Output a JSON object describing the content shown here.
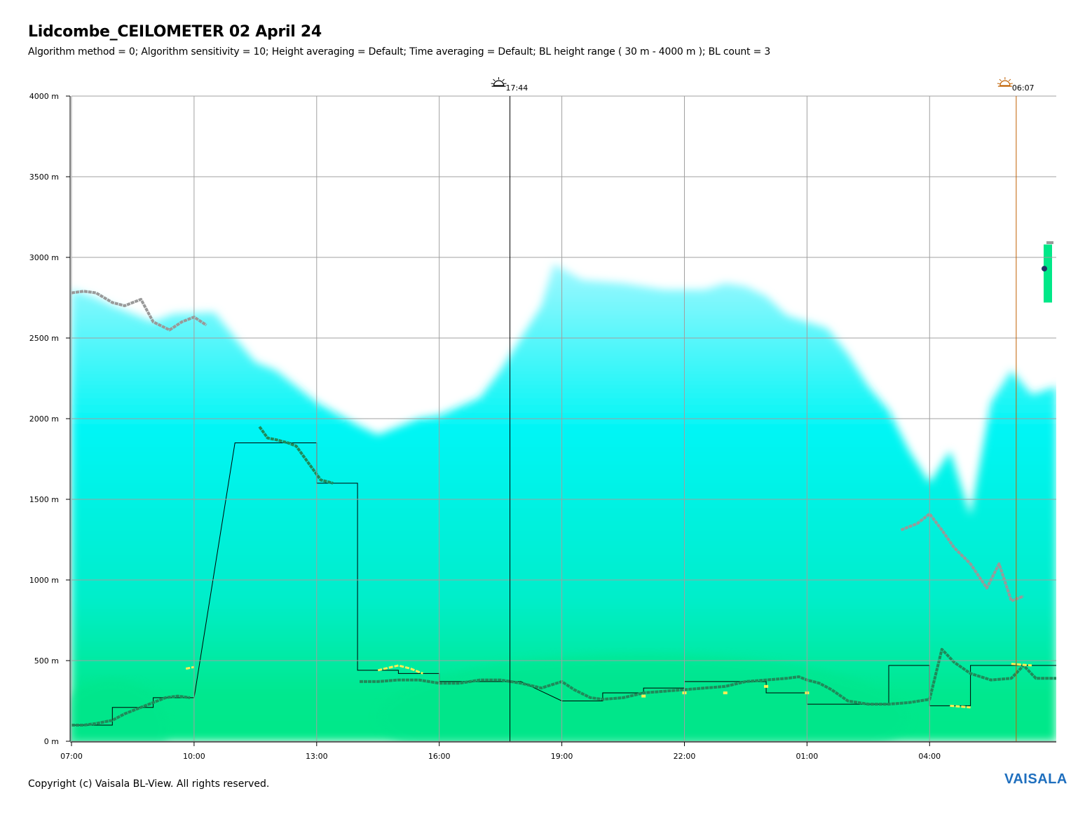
{
  "header": {
    "title": "Lidcombe_CEILOMETER 02 April 24",
    "subtitle": "Algorithm method = 0; Algorithm sensitivity = 10; Height averaging = Default; Time averaging = Default; BL height range ( 30 m - 4000 m ); BL count = 3"
  },
  "footer": {
    "copyright": "Copyright (c) Vaisala BL-View. All rights reserved.",
    "brand": "VAISALA"
  },
  "colors": {
    "grid": "#a0a0a0",
    "cyan": "#00f5f5",
    "green": "#00e58a",
    "bl1": "#1f8a5a",
    "bl2": "#999999",
    "bl3": "#ffee55",
    "sunset_line": "#000000",
    "sunrise_line": "#c06000"
  },
  "chart_data": {
    "type": "heatmap",
    "x_unit": "hours since 07:00",
    "x_ticks": [
      "07:00",
      "10:00",
      "13:00",
      "16:00",
      "19:00",
      "22:00",
      "01:00",
      "04:00"
    ],
    "y_ticks": [
      "0 m",
      "500 m",
      "1000 m",
      "1500 m",
      "2000 m",
      "2500 m",
      "3000 m",
      "3500 m",
      "4000 m"
    ],
    "ylim": [
      0,
      4000
    ],
    "xlim": [
      0,
      24.1
    ],
    "events": [
      {
        "name": "sunset",
        "label": "17:44",
        "x": 10.73
      },
      {
        "name": "sunrise",
        "label": "06:07",
        "x": 23.12
      }
    ],
    "signal_top": [
      [
        0,
        2800
      ],
      [
        0.5,
        2760
      ],
      [
        1,
        2700
      ],
      [
        1.5,
        2650
      ],
      [
        2,
        2600
      ],
      [
        2.5,
        2650
      ],
      [
        3.5,
        2660
      ],
      [
        4,
        2500
      ],
      [
        4.5,
        2350
      ],
      [
        5,
        2300
      ],
      [
        5.5,
        2200
      ],
      [
        6,
        2100
      ],
      [
        6.5,
        2030
      ],
      [
        7,
        1960
      ],
      [
        7.5,
        1900
      ],
      [
        8,
        1950
      ],
      [
        8.5,
        2000
      ],
      [
        9,
        2020
      ],
      [
        10,
        2130
      ],
      [
        10.5,
        2300
      ],
      [
        11,
        2500
      ],
      [
        11.5,
        2700
      ],
      [
        11.8,
        2960
      ],
      [
        12.5,
        2860
      ],
      [
        13.5,
        2840
      ],
      [
        14.5,
        2800
      ],
      [
        15.5,
        2800
      ],
      [
        16,
        2840
      ],
      [
        16.5,
        2820
      ],
      [
        17,
        2760
      ],
      [
        17.5,
        2640
      ],
      [
        18,
        2600
      ],
      [
        18.5,
        2560
      ],
      [
        19,
        2400
      ],
      [
        19.5,
        2200
      ],
      [
        20,
        2050
      ],
      [
        20.5,
        1800
      ],
      [
        21,
        1600
      ],
      [
        21.5,
        1800
      ],
      [
        22,
        1400
      ],
      [
        22.5,
        2100
      ],
      [
        23,
        2300
      ],
      [
        23.5,
        2150
      ],
      [
        24.1,
        2200
      ]
    ],
    "bl_step": [
      [
        0,
        100
      ],
      [
        1,
        100
      ],
      [
        1,
        210
      ],
      [
        2,
        210
      ],
      [
        2,
        270
      ],
      [
        3,
        270
      ],
      [
        4,
        1850
      ],
      [
        6,
        1850
      ],
      [
        6,
        1600
      ],
      [
        7,
        1600
      ],
      [
        7,
        440
      ],
      [
        8,
        440
      ],
      [
        8,
        420
      ],
      [
        9,
        420
      ],
      [
        9,
        370
      ],
      [
        11,
        370
      ],
      [
        12,
        250
      ],
      [
        13,
        250
      ],
      [
        13,
        300
      ],
      [
        14,
        300
      ],
      [
        14,
        330
      ],
      [
        15,
        330
      ],
      [
        15,
        370
      ],
      [
        17,
        370
      ],
      [
        17,
        300
      ],
      [
        18,
        300
      ],
      [
        18,
        230
      ],
      [
        20,
        230
      ],
      [
        20,
        470
      ],
      [
        21,
        470
      ],
      [
        21,
        220
      ],
      [
        22,
        220
      ],
      [
        22,
        470
      ],
      [
        24.1,
        470
      ]
    ],
    "series": [
      {
        "style": "dark-green",
        "points": [
          [
            0,
            100
          ],
          [
            0.3,
            100
          ],
          [
            0.6,
            110
          ],
          [
            1,
            130
          ],
          [
            1.3,
            170
          ],
          [
            1.7,
            210
          ],
          [
            2,
            240
          ],
          [
            2.3,
            270
          ],
          [
            2.6,
            280
          ],
          [
            2.9,
            270
          ],
          [
            4.6,
            1950
          ],
          [
            4.8,
            1880
          ],
          [
            5,
            1870
          ],
          [
            5.3,
            1850
          ],
          [
            5.5,
            1830
          ],
          [
            6.1,
            1620
          ],
          [
            6.4,
            1600
          ],
          [
            7.05,
            370
          ],
          [
            7.5,
            370
          ],
          [
            8,
            380
          ],
          [
            8.5,
            380
          ],
          [
            9,
            360
          ],
          [
            9.5,
            360
          ],
          [
            10,
            380
          ],
          [
            10.5,
            380
          ],
          [
            11,
            360
          ],
          [
            11.5,
            330
          ],
          [
            12,
            370
          ],
          [
            12.3,
            320
          ],
          [
            12.7,
            270
          ],
          [
            13,
            260
          ],
          [
            13.5,
            270
          ],
          [
            14,
            300
          ],
          [
            14.5,
            310
          ],
          [
            15,
            320
          ],
          [
            15.5,
            330
          ],
          [
            16,
            340
          ],
          [
            16.5,
            370
          ],
          [
            17,
            380
          ],
          [
            17.5,
            390
          ],
          [
            17.8,
            400
          ],
          [
            18,
            380
          ],
          [
            18.3,
            360
          ],
          [
            18.6,
            320
          ],
          [
            19,
            250
          ],
          [
            19.5,
            230
          ],
          [
            20,
            230
          ],
          [
            20.5,
            240
          ],
          [
            21,
            260
          ],
          [
            21.3,
            570
          ],
          [
            21.6,
            490
          ],
          [
            22,
            420
          ],
          [
            22.5,
            380
          ],
          [
            23,
            390
          ],
          [
            23.3,
            470
          ],
          [
            23.6,
            390
          ],
          [
            24.1,
            390
          ]
        ]
      },
      {
        "style": "grey",
        "points": [
          [
            0,
            2780
          ],
          [
            0.3,
            2790
          ],
          [
            0.6,
            2780
          ],
          [
            1,
            2720
          ],
          [
            1.3,
            2700
          ],
          [
            1.7,
            2740
          ],
          [
            2,
            2600
          ],
          [
            2.4,
            2550
          ],
          [
            2.7,
            2600
          ],
          [
            3,
            2630
          ],
          [
            3.3,
            2580
          ],
          [
            20.3,
            1310
          ],
          [
            20.7,
            1350
          ],
          [
            21,
            1410
          ],
          [
            21.3,
            1310
          ],
          [
            21.6,
            1200
          ],
          [
            22,
            1100
          ],
          [
            22.4,
            950
          ],
          [
            22.7,
            1100
          ],
          [
            23,
            870
          ],
          [
            23.3,
            900
          ]
        ]
      },
      {
        "style": "yellow",
        "points": [
          [
            2.8,
            450
          ],
          [
            3,
            460
          ],
          [
            7.5,
            440
          ],
          [
            8,
            470
          ],
          [
            8.3,
            450
          ],
          [
            8.6,
            420
          ],
          [
            14,
            280
          ],
          [
            15,
            300
          ],
          [
            16,
            300
          ],
          [
            17,
            340
          ],
          [
            18,
            300
          ],
          [
            21.5,
            220
          ],
          [
            22,
            210
          ],
          [
            23,
            480
          ],
          [
            23.5,
            470
          ]
        ]
      }
    ]
  }
}
